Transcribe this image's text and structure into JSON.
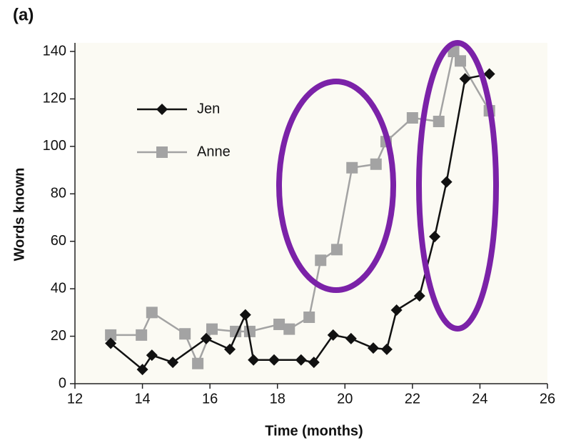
{
  "chart_data": {
    "type": "line",
    "panel_label": "(a)",
    "xlabel": "Time (months)",
    "ylabel": "Words known",
    "xlim": [
      12,
      26
    ],
    "ylim": [
      0,
      140
    ],
    "xticks": [
      12,
      14,
      16,
      18,
      20,
      22,
      24,
      26
    ],
    "yticks": [
      0,
      20,
      40,
      60,
      80,
      100,
      120,
      140
    ],
    "legend": "upper left",
    "series": [
      {
        "name": "Jen",
        "color": "#111111",
        "marker": "diamond",
        "x": [
          13.06,
          14.0,
          14.28,
          14.9,
          15.89,
          16.59,
          17.05,
          17.29,
          17.9,
          18.7,
          19.08,
          19.65,
          20.18,
          20.84,
          21.24,
          21.53,
          22.21,
          22.66,
          23.01,
          23.56,
          24.28
        ],
        "values": [
          17,
          6,
          12,
          9,
          19,
          14.5,
          29,
          10,
          10,
          10,
          9,
          20.5,
          19,
          15,
          14.5,
          31,
          37,
          62,
          85,
          128.5,
          130.5
        ]
      },
      {
        "name": "Anne",
        "color": "#a3a3a3",
        "marker": "square",
        "x": [
          13.06,
          13.97,
          14.28,
          15.26,
          15.64,
          16.06,
          16.76,
          17.18,
          18.05,
          18.35,
          18.94,
          19.28,
          19.76,
          20.21,
          20.92,
          21.22,
          22.0,
          22.78,
          23.22,
          23.42,
          24.28
        ],
        "values": [
          20.5,
          20.5,
          30,
          21,
          8.5,
          23,
          22,
          22,
          25,
          23,
          28,
          52,
          56.5,
          91,
          92.5,
          102,
          112,
          110.5,
          140,
          136,
          115
        ]
      }
    ]
  }
}
